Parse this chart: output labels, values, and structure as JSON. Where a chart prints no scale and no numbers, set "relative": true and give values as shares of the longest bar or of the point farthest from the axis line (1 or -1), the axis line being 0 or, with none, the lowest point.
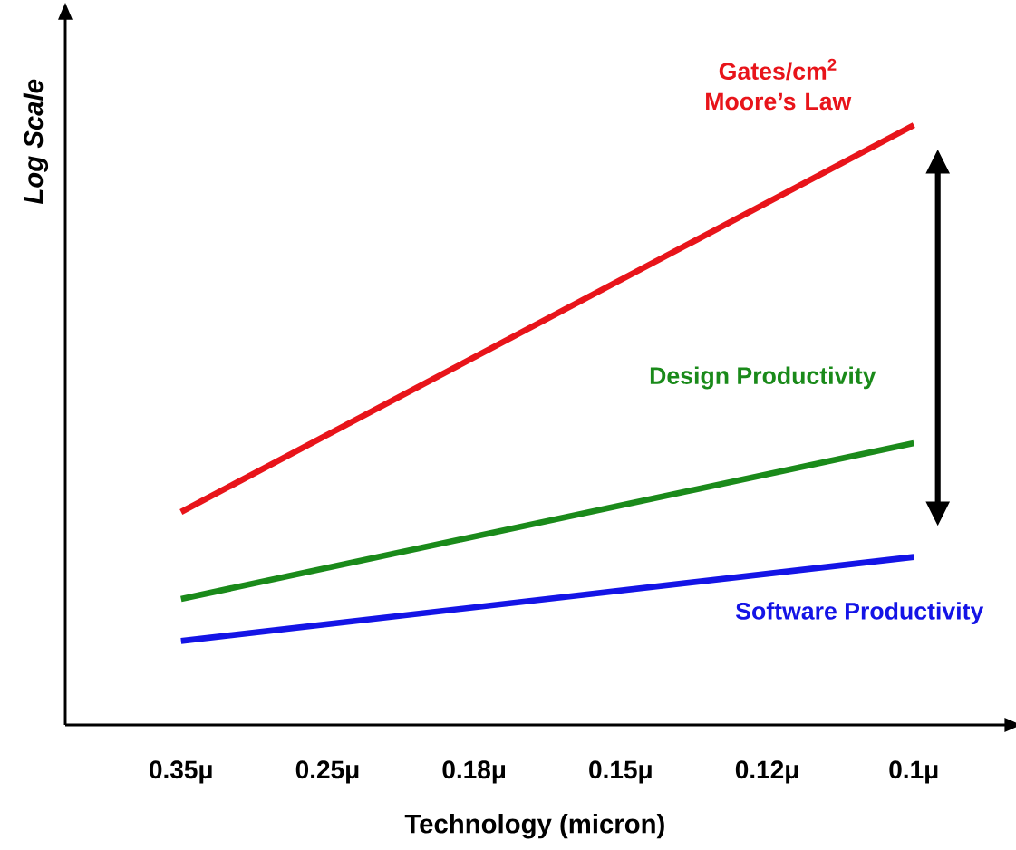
{
  "chart_data": {
    "type": "line",
    "relative": true,
    "xlabel": "Technology (micron)",
    "ylabel": "Log Scale",
    "categories": [
      "0.35μ",
      "0.25μ",
      "0.18μ",
      "0.15μ",
      "0.12μ",
      "0.1μ"
    ],
    "series": [
      {
        "name": "Gates/cm$^{2}$ Moore’s Law",
        "color": "#e8141a",
        "values": [
          0.355,
          null,
          null,
          null,
          null,
          1
        ]
      },
      {
        "name": "Design Productivity",
        "color": "#1a8a1a",
        "values": [
          0.21,
          null,
          null,
          null,
          null,
          0.47
        ]
      },
      {
        "name": "Software Productivity",
        "color": "#1414e6",
        "values": [
          0.14,
          null,
          null,
          null,
          null,
          0.28
        ]
      }
    ]
  }
}
